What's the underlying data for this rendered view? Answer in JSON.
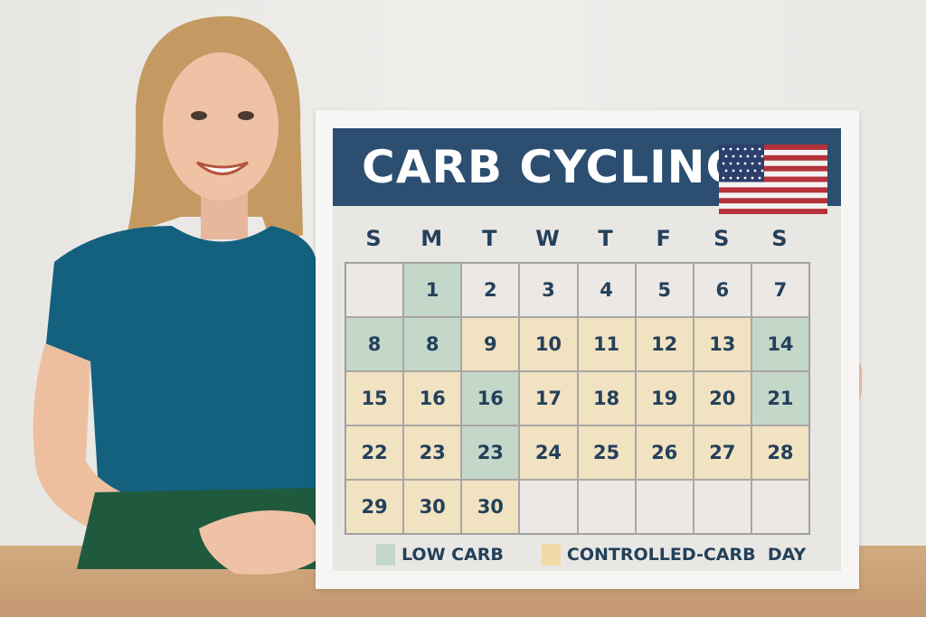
{
  "poster": {
    "title": "CARB CYCLING",
    "flag_icon": "us-flag",
    "days_of_week": [
      "S",
      "M",
      "T",
      "W",
      "T",
      "F",
      "S",
      "S"
    ],
    "cells": [
      {
        "d": "",
        "t": "none"
      },
      {
        "d": "1",
        "t": "low"
      },
      {
        "d": "2",
        "t": "none"
      },
      {
        "d": "3",
        "t": "none"
      },
      {
        "d": "4",
        "t": "none"
      },
      {
        "d": "5",
        "t": "none"
      },
      {
        "d": "6",
        "t": "none"
      },
      {
        "d": "7",
        "t": "none"
      },
      {
        "d": "8",
        "t": "low"
      },
      {
        "d": "8",
        "t": "low"
      },
      {
        "d": "9",
        "t": "ctrl"
      },
      {
        "d": "10",
        "t": "ctrl"
      },
      {
        "d": "11",
        "t": "ctrl"
      },
      {
        "d": "12",
        "t": "ctrl"
      },
      {
        "d": "13",
        "t": "ctrl"
      },
      {
        "d": "14",
        "t": "low"
      },
      {
        "d": "15",
        "t": "ctrl"
      },
      {
        "d": "16",
        "t": "ctrl"
      },
      {
        "d": "16",
        "t": "low"
      },
      {
        "d": "17",
        "t": "ctrl"
      },
      {
        "d": "18",
        "t": "ctrl"
      },
      {
        "d": "19",
        "t": "ctrl"
      },
      {
        "d": "20",
        "t": "ctrl"
      },
      {
        "d": "21",
        "t": "low"
      },
      {
        "d": "22",
        "t": "ctrl"
      },
      {
        "d": "23",
        "t": "ctrl"
      },
      {
        "d": "23",
        "t": "low"
      },
      {
        "d": "24",
        "t": "ctrl"
      },
      {
        "d": "25",
        "t": "ctrl"
      },
      {
        "d": "26",
        "t": "ctrl"
      },
      {
        "d": "27",
        "t": "ctrl"
      },
      {
        "d": "28",
        "t": "ctrl"
      },
      {
        "d": "29",
        "t": "ctrl"
      },
      {
        "d": "30",
        "t": "ctrl"
      },
      {
        "d": "30",
        "t": "ctrl"
      },
      {
        "d": "",
        "t": "none"
      },
      {
        "d": "",
        "t": "none"
      },
      {
        "d": "",
        "t": "none"
      },
      {
        "d": "",
        "t": "none"
      },
      {
        "d": "",
        "t": "none"
      }
    ],
    "legend": [
      {
        "label": "LOW CARB",
        "color": "#c4d8c9"
      },
      {
        "label": "CONTROLLED-CARB  DAY",
        "color": "#f1d9a8"
      }
    ],
    "colors": {
      "banner": "#2b4e71",
      "low": "#c4d8c9",
      "controlled": "#f1e2c2",
      "text": "#24405a"
    }
  }
}
